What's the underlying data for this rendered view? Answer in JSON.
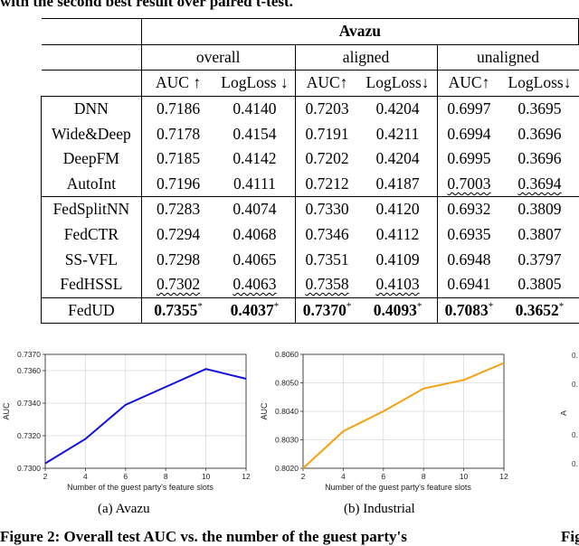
{
  "top_caption": "with the second best result over paired t-test.",
  "table": {
    "dataset": "Avazu",
    "groups": [
      "overall",
      "aligned",
      "unaligned"
    ],
    "metrics": [
      "AUC ↑",
      "LogLoss ↓",
      "AUC↑",
      "LogLoss↓",
      "AUC↑",
      "LogLoss↓"
    ],
    "rows": [
      {
        "name": "DNN",
        "values": [
          "0.7186",
          "0.4140",
          "0.7203",
          "0.4204",
          "0.6997",
          "0.3695"
        ]
      },
      {
        "name": "Wide&Deep",
        "values": [
          "0.7178",
          "0.4154",
          "0.7191",
          "0.4211",
          "0.6994",
          "0.3696"
        ]
      },
      {
        "name": "DeepFM",
        "values": [
          "0.7185",
          "0.4142",
          "0.7202",
          "0.4204",
          "0.6995",
          "0.3696"
        ]
      },
      {
        "name": "AutoInt",
        "values": [
          "0.7196",
          "0.4111",
          "0.7212",
          "0.4187",
          "0.7003",
          "0.3694"
        ]
      },
      {
        "name": "FedSplitNN",
        "values": [
          "0.7283",
          "0.4074",
          "0.7330",
          "0.4120",
          "0.6932",
          "0.3809"
        ]
      },
      {
        "name": "FedCTR",
        "values": [
          "0.7294",
          "0.4068",
          "0.7346",
          "0.4112",
          "0.6935",
          "0.3807"
        ]
      },
      {
        "name": "SS-VFL",
        "values": [
          "0.7298",
          "0.4065",
          "0.7351",
          "0.4109",
          "0.6948",
          "0.3797"
        ]
      },
      {
        "name": "FedHSSL",
        "values": [
          "0.7302",
          "0.4063",
          "0.7358",
          "0.4103",
          "0.6941",
          "0.3805"
        ]
      },
      {
        "name": "FedUD",
        "values": [
          "0.7355",
          "0.4037",
          "0.7370",
          "0.4093",
          "0.7083",
          "0.3652"
        ]
      }
    ],
    "best_marker": "*"
  },
  "chart_data": [
    {
      "type": "line",
      "x": [
        2,
        4,
        6,
        8,
        10,
        12
      ],
      "y": [
        0.7303,
        0.7318,
        0.7339,
        0.735,
        0.7361,
        0.7355
      ],
      "xlabel": "Number of the guest party's feature slots",
      "ylabel": "AUC",
      "ylim": [
        0.73,
        0.737
      ],
      "yticks": [
        "0.7300",
        "0.7320",
        "0.7340",
        "0.7360",
        "0.7370"
      ],
      "ytick_values": [
        0.73,
        0.732,
        0.734,
        0.736,
        0.737
      ],
      "xticks": [
        "2",
        "4",
        "6",
        "8",
        "10",
        "12"
      ],
      "color": "#1111dd",
      "grid": true
    },
    {
      "type": "line",
      "x": [
        2,
        4,
        6,
        8,
        10,
        12
      ],
      "y": [
        0.802,
        0.8033,
        0.804,
        0.8048,
        0.8051,
        0.8057
      ],
      "xlabel": "Number of the guest party's feature slots",
      "ylabel": "AUC",
      "ylim": [
        0.802,
        0.806
      ],
      "yticks": [
        "0.8020",
        "0.8030",
        "0.8040",
        "0.8050",
        "0.8060"
      ],
      "ytick_values": [
        0.802,
        0.803,
        0.804,
        0.805,
        0.806
      ],
      "xticks": [
        "2",
        "4",
        "6",
        "8",
        "10",
        "12"
      ],
      "color": "#f5a10e",
      "grid": true
    }
  ],
  "subcaptions": [
    "(a)  Avazu",
    "(b)  Industrial"
  ],
  "figure_caption": "Figure 2: Overall test AUC vs. the number of the guest party's",
  "figure_caption_right": "Fig",
  "right_chart_partial": {
    "ylabel": "A",
    "ytick_prefix": "0."
  }
}
